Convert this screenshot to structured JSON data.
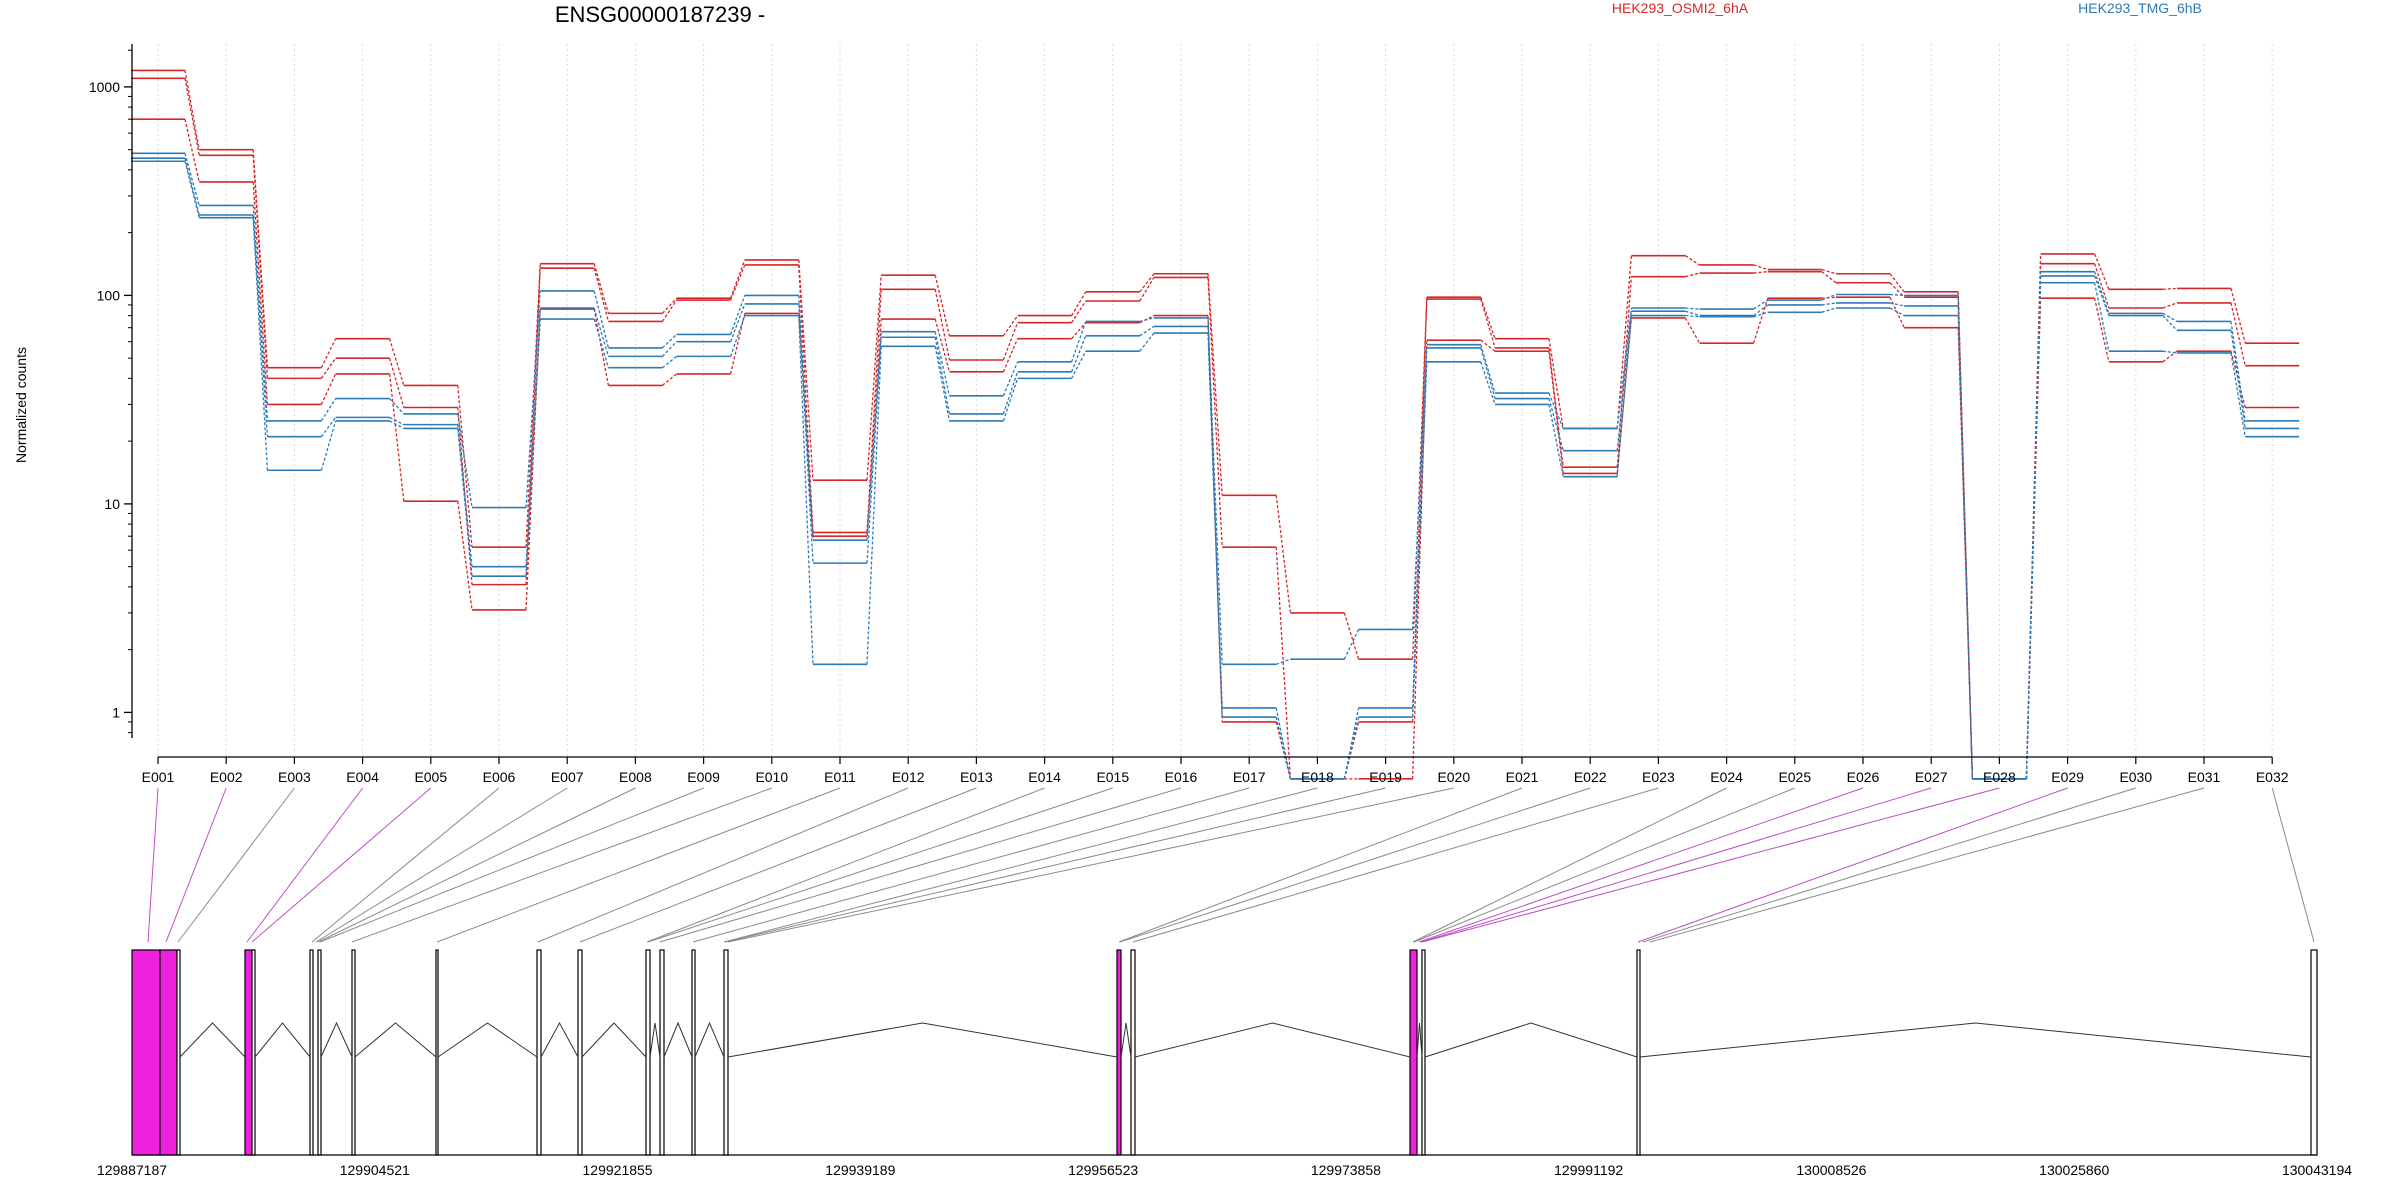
{
  "chart_data": {
    "type": "line",
    "title": "ENSG00000187239 -",
    "ylabel": "Normalized counts",
    "xlabel": "",
    "y_scale": "log",
    "ylim": [
      0.45,
      1600
    ],
    "y_ticks": [
      1,
      10,
      100,
      1000
    ],
    "grid": "vertical dotted per exon",
    "legend_position": "top",
    "categories": [
      "E001",
      "E002",
      "E003",
      "E004",
      "E005",
      "E006",
      "E007",
      "E008",
      "E009",
      "E010",
      "E011",
      "E012",
      "E013",
      "E014",
      "E015",
      "E016",
      "E017",
      "E018",
      "E019",
      "E020",
      "E021",
      "E022",
      "E023",
      "E024",
      "E025",
      "E026",
      "E027",
      "E028",
      "E029",
      "E030",
      "E031",
      "E032"
    ],
    "groups": [
      {
        "name": "HEK293_OSMI2_6hA",
        "color": "#d62728"
      },
      {
        "name": "HEK293_TMG_6hB",
        "color": "#2c7bb6"
      }
    ],
    "series": [
      {
        "group": "HEK293_OSMI2_6hA",
        "values": [
          1200,
          500,
          45,
          62,
          37,
          6.2,
          142,
          82,
          97,
          148,
          13,
          125,
          64,
          80,
          104,
          127,
          11,
          3,
          1.8,
          98,
          62,
          23,
          155,
          140,
          133,
          127,
          104,
          0.48,
          158,
          107,
          108,
          59
        ]
      },
      {
        "group": "HEK293_OSMI2_6hA",
        "values": [
          1100,
          470,
          40,
          50,
          29,
          4.1,
          135,
          75,
          95,
          140,
          7.3,
          107,
          49,
          74,
          94,
          122,
          6.2,
          0.48,
          0.9,
          96,
          56,
          15,
          123,
          128,
          130,
          115,
          98,
          0.48,
          142,
          87,
          92,
          46
        ]
      },
      {
        "group": "HEK293_OSMI2_6hA",
        "values": [
          700,
          350,
          30,
          42,
          10.3,
          3.1,
          86,
          37,
          42,
          82,
          7,
          77,
          43,
          62,
          74,
          80,
          0.9,
          0.48,
          0.48,
          61,
          54,
          14,
          78,
          59,
          97,
          98,
          70,
          0.48,
          97,
          48,
          54,
          29
        ]
      },
      {
        "group": "HEK293_TMG_6hB",
        "values": [
          480,
          270,
          25,
          32,
          27,
          9.6,
          105,
          56,
          65,
          100,
          6.7,
          67,
          33,
          48,
          75,
          78,
          1.7,
          1.8,
          2.5,
          58,
          34,
          23,
          87,
          86,
          95,
          101,
          100,
          0.48,
          130,
          82,
          75,
          25
        ]
      },
      {
        "group": "HEK293_TMG_6hB",
        "values": [
          455,
          243,
          21,
          26,
          24,
          5,
          87,
          51,
          60,
          91,
          5.2,
          63,
          27,
          43,
          64,
          71,
          1.05,
          0.48,
          1.05,
          56,
          32,
          18,
          84,
          80,
          90,
          92,
          89,
          0.48,
          124,
          80,
          68,
          23
        ]
      },
      {
        "group": "HEK293_TMG_6hB",
        "values": [
          440,
          236,
          14.5,
          25,
          23,
          4.5,
          77,
          45,
          51,
          80,
          1.7,
          57,
          25,
          40,
          54,
          66,
          0.95,
          0.48,
          0.95,
          48,
          30,
          13.5,
          80,
          79,
          83,
          87,
          80,
          0.48,
          115,
          54,
          53,
          21
        ]
      }
    ],
    "gene_model": {
      "coordinate_labels": [
        "129887187",
        "129904521",
        "129921855",
        "129939189",
        "129956523",
        "129973858",
        "129991192",
        "130008526",
        "130025860",
        "130043194"
      ],
      "highlight_color": "#ee22dd"
    }
  }
}
